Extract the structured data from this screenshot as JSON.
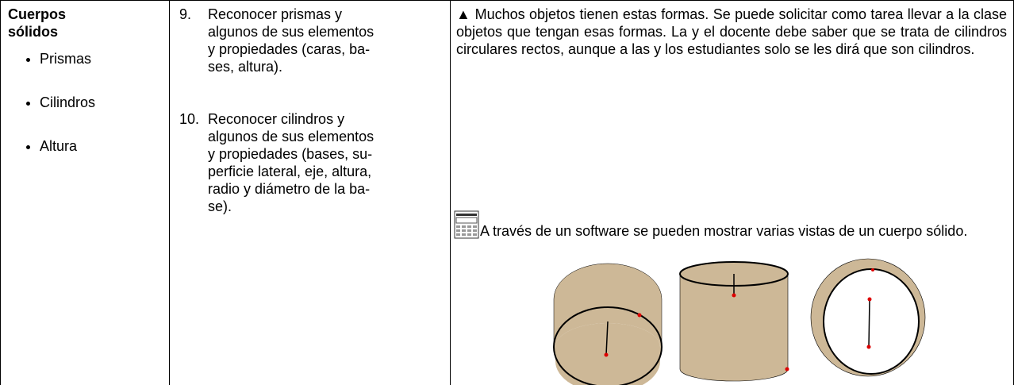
{
  "column1": {
    "heading": "Cuerpos sólidos",
    "bullets": [
      "Prismas",
      "Cilindros",
      "Altura"
    ]
  },
  "column2": {
    "items": [
      {
        "number": "9.",
        "lines": [
          "Reconocer prismas y",
          "algunos de sus elementos",
          "y propiedades (caras, ba-",
          "ses, altura)."
        ]
      },
      {
        "number": "10.",
        "lines": [
          "Reconocer cilindros y",
          "algunos de sus elementos",
          "y propiedades (bases, su-",
          "perficie lateral, eje, altura,",
          "radio y diámetro de la ba-",
          "se)."
        ]
      }
    ]
  },
  "column3": {
    "paragraphs": [
      "▲ Muchos objetos tienen estas formas. Se puede solicitar como tarea llevar a la clase objetos que tengan esas formas. La y el docente debe saber que se trata de cilindros circulares rectos, aunque a las y los estudiantes solo se les dirá que son cilindros.",
      "A través de un software se pueden mostrar varias vistas de un cuerpo sólido."
    ]
  }
}
